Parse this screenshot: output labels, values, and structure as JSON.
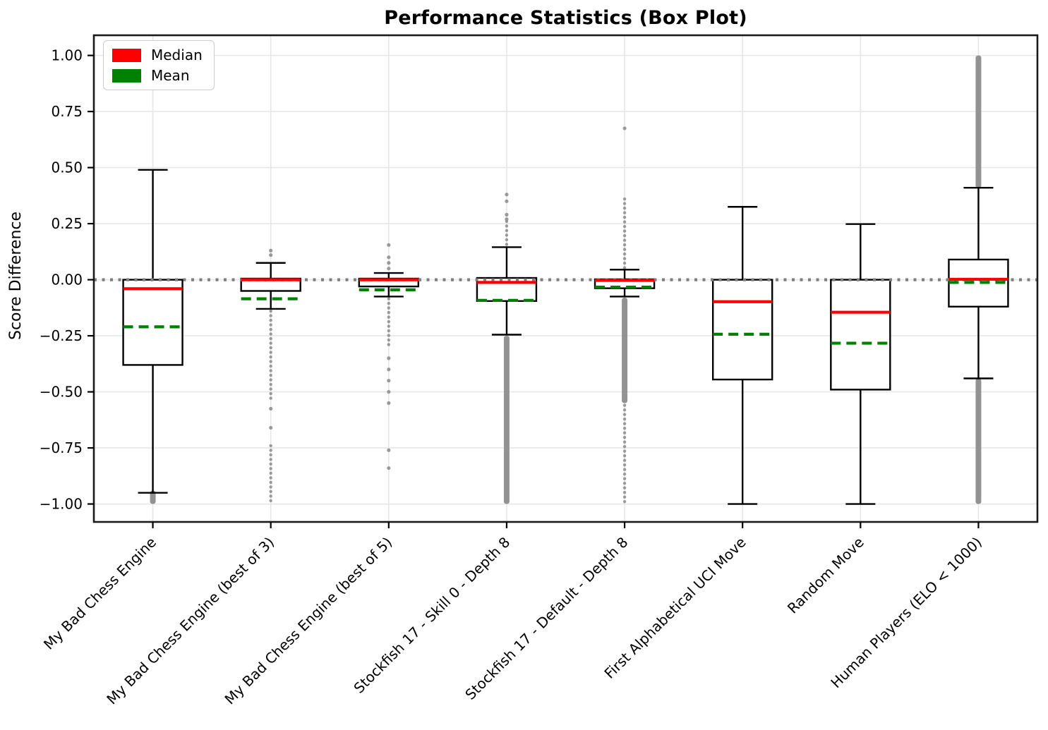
{
  "chart_data": {
    "type": "boxplot",
    "title": "Performance Statistics (Box Plot)",
    "ylabel": "Score Difference",
    "xlabel": "",
    "ylim": [
      -1.08,
      1.09
    ],
    "grid": true,
    "legend_position": "upper left",
    "legend": [
      {
        "label": "Median",
        "color": "#ff0000"
      },
      {
        "label": "Mean",
        "color": "#008000"
      }
    ],
    "colors": {
      "box_edge": "#000000",
      "box_fill": "#ffffff",
      "median": "#ff0000",
      "mean": "#008000",
      "outlier": "#8a8a8a",
      "zero_line": "#7f7f7f",
      "grid": "#e7e7e7",
      "spine": "#1a1a1a"
    },
    "zero_line": {
      "value": 0.0,
      "style": "dotted"
    },
    "yticks": [
      {
        "value": 1.0,
        "label": "1.00"
      },
      {
        "value": 0.75,
        "label": "0.75"
      },
      {
        "value": 0.5,
        "label": "0.50"
      },
      {
        "value": 0.25,
        "label": "0.25"
      },
      {
        "value": 0.0,
        "label": "0.00"
      },
      {
        "value": -0.25,
        "label": "−0.25"
      },
      {
        "value": -0.5,
        "label": "−0.50"
      },
      {
        "value": -0.75,
        "label": "−0.75"
      },
      {
        "value": -1.0,
        "label": "−1.00"
      }
    ],
    "categories": [
      "My Bad Chess Engine",
      "My Bad Chess Engine (best of 3)",
      "My Bad Chess Engine (best of 5)",
      "Stockfish 17 - Skill 0 - Depth 8",
      "Stockfish 17 - Default - Depth 8",
      "First Alphabetical UCI Move",
      "Random Move",
      "Human Players (ELO < 1000)"
    ],
    "series": [
      {
        "label": "My Bad Chess Engine",
        "whisker_low": -0.95,
        "q1": -0.38,
        "median": -0.04,
        "q3": 0.0,
        "whisker_high": 0.49,
        "mean": -0.21,
        "outliers": {
          "above": {
            "points": [],
            "segments": []
          },
          "below": {
            "points": [],
            "segments": [
              {
                "lo": -1.0,
                "hi": -0.94,
                "density": "dense"
              }
            ]
          }
        }
      },
      {
        "label": "My Bad Chess Engine (best of 3)",
        "whisker_low": -0.13,
        "q1": -0.05,
        "median": 0.0,
        "q3": 0.005,
        "whisker_high": 0.075,
        "mean": -0.085,
        "outliers": {
          "above": {
            "points": [
              0.11,
              0.13
            ],
            "segments": []
          },
          "below": {
            "points": [
              -0.575,
              -0.66
            ],
            "segments": [
              {
                "lo": -0.53,
                "hi": -0.14,
                "density": "medium"
              },
              {
                "lo": -1.0,
                "hi": -0.74,
                "density": "medium"
              }
            ]
          }
        }
      },
      {
        "label": "My Bad Chess Engine (best of 5)",
        "whisker_low": -0.075,
        "q1": -0.03,
        "median": 0.0,
        "q3": 0.005,
        "whisker_high": 0.03,
        "mean": -0.045,
        "outliers": {
          "above": {
            "points": [
              0.05,
              0.075,
              0.1,
              0.155
            ],
            "segments": []
          },
          "below": {
            "points": [
              -0.35,
              -0.4,
              -0.45,
              -0.5,
              -0.55,
              -0.76,
              -0.84
            ],
            "segments": [
              {
                "lo": -0.3,
                "hi": -0.085,
                "density": "medium"
              }
            ]
          }
        }
      },
      {
        "label": "Stockfish 17 - Skill 0 - Depth 8",
        "whisker_low": -0.245,
        "q1": -0.095,
        "median": -0.012,
        "q3": 0.008,
        "whisker_high": 0.145,
        "mean": -0.092,
        "outliers": {
          "above": {
            "points": [
              0.27,
              0.29,
              0.35,
              0.38
            ],
            "segments": [
              {
                "lo": 0.15,
                "hi": 0.26,
                "density": "medium"
              }
            ]
          },
          "below": {
            "points": [],
            "segments": [
              {
                "lo": -1.0,
                "hi": -0.25,
                "density": "dense"
              }
            ]
          }
        }
      },
      {
        "label": "Stockfish 17 - Default - Depth 8",
        "whisker_low": -0.075,
        "q1": -0.038,
        "median": -0.003,
        "q3": 0.002,
        "whisker_high": 0.045,
        "mean": -0.033,
        "outliers": {
          "above": {
            "points": [
              0.675
            ],
            "segments": [
              {
                "lo": 0.05,
                "hi": 0.36,
                "density": "medium"
              }
            ]
          },
          "below": {
            "points": [],
            "segments": [
              {
                "lo": -0.55,
                "hi": -0.08,
                "density": "dense"
              },
              {
                "lo": -1.0,
                "hi": -0.56,
                "density": "medium"
              }
            ]
          }
        }
      },
      {
        "label": "First Alphabetical UCI Move",
        "whisker_low": -1.0,
        "q1": -0.445,
        "median": -0.098,
        "q3": 0.0,
        "whisker_high": 0.325,
        "mean": -0.243,
        "outliers": {
          "above": {
            "points": [],
            "segments": []
          },
          "below": {
            "points": [],
            "segments": []
          }
        }
      },
      {
        "label": "Random Move",
        "whisker_low": -1.0,
        "q1": -0.49,
        "median": -0.145,
        "q3": 0.0,
        "whisker_high": 0.248,
        "mean": -0.283,
        "outliers": {
          "above": {
            "points": [],
            "segments": []
          },
          "below": {
            "points": [],
            "segments": []
          }
        }
      },
      {
        "label": "Human Players (ELO < 1000)",
        "whisker_low": -0.44,
        "q1": -0.12,
        "median": 0.002,
        "q3": 0.09,
        "whisker_high": 0.41,
        "mean": -0.012,
        "outliers": {
          "above": {
            "points": [],
            "segments": [
              {
                "lo": 0.41,
                "hi": 1.0,
                "density": "dense"
              }
            ]
          },
          "below": {
            "points": [],
            "segments": [
              {
                "lo": -1.0,
                "hi": -0.44,
                "density": "dense"
              }
            ]
          }
        }
      }
    ]
  }
}
